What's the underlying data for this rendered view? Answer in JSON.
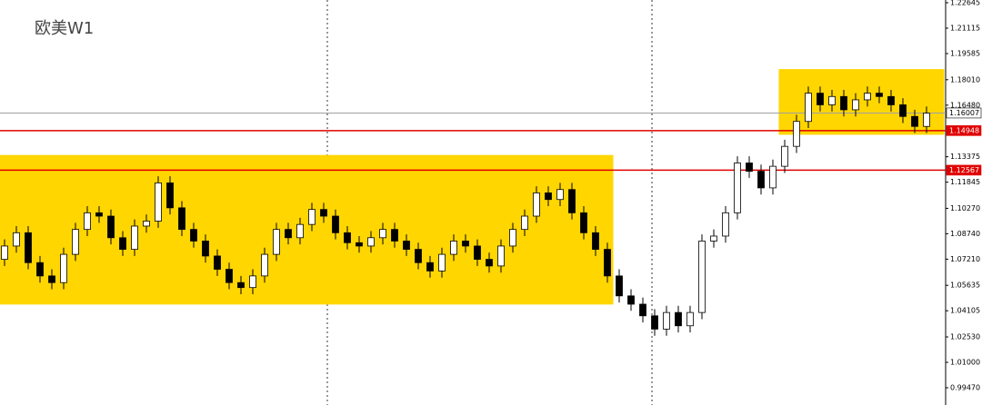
{
  "chart_data": {
    "type": "candlestick",
    "title": "欧美W1",
    "ylim": [
      0.98432,
      1.22809
    ],
    "yticks": [
      1.22645,
      1.21115,
      1.19585,
      {
        "value": 1.1801,
        "label": "1.18010"
      },
      {
        "value": 1.1648,
        "label": "1.16480"
      },
      1.13375,
      1.11845,
      {
        "value": 1.1027,
        "label": "1.10270"
      },
      {
        "value": 1.0874,
        "label": "1.08740"
      },
      {
        "value": 1.0721,
        "label": "1.07210"
      },
      1.05635,
      1.04105,
      {
        "value": 1.0253,
        "label": "1.02530"
      },
      {
        "value": 1.01,
        "label": "1.01000"
      },
      {
        "value": 0.9947,
        "label": "0.99470"
      }
    ],
    "bull_color": "#ffffff",
    "bear_color": "#000000",
    "open": [
      1.072,
      1.08,
      1.088,
      1.07,
      1.062,
      1.058,
      1.075,
      1.09,
      1.1,
      1.098,
      1.085,
      1.078,
      1.092,
      1.095,
      1.118,
      1.103,
      1.09,
      1.083,
      1.074,
      1.066,
      1.058,
      1.055,
      1.062,
      1.075,
      1.09,
      1.085,
      1.093,
      1.102,
      1.098,
      1.088,
      1.082,
      1.08,
      1.085,
      1.09,
      1.083,
      1.078,
      1.07,
      1.065,
      1.075,
      1.083,
      1.08,
      1.072,
      1.068,
      1.08,
      1.09,
      1.098,
      1.112,
      1.108,
      1.114,
      1.1,
      1.088,
      1.078,
      1.062,
      1.05,
      1.045,
      1.038,
      1.03,
      1.04,
      1.032,
      1.04,
      1.083,
      1.086,
      1.1,
      1.13,
      1.125,
      1.115,
      1.128,
      1.14,
      1.155,
      1.172,
      1.165,
      1.17,
      1.162,
      1.168,
      1.172,
      1.17,
      1.165,
      1.158,
      1.152
    ],
    "high": [
      1.084,
      1.092,
      1.092,
      1.074,
      1.066,
      1.079,
      1.094,
      1.104,
      1.104,
      1.102,
      1.089,
      1.096,
      1.099,
      1.122,
      1.122,
      1.107,
      1.094,
      1.087,
      1.078,
      1.07,
      1.062,
      1.066,
      1.079,
      1.094,
      1.094,
      1.097,
      1.106,
      1.106,
      1.102,
      1.092,
      1.086,
      1.089,
      1.094,
      1.094,
      1.087,
      1.082,
      1.074,
      1.079,
      1.087,
      1.087,
      1.084,
      1.076,
      1.084,
      1.094,
      1.102,
      1.116,
      1.116,
      1.118,
      1.118,
      1.104,
      1.092,
      1.082,
      1.066,
      1.054,
      1.049,
      1.042,
      1.044,
      1.044,
      1.044,
      1.087,
      1.09,
      1.104,
      1.134,
      1.134,
      1.129,
      1.132,
      1.144,
      1.159,
      1.176,
      1.176,
      1.174,
      1.174,
      1.172,
      1.176,
      1.176,
      1.174,
      1.169,
      1.162,
      1.164
    ],
    "low": [
      1.068,
      1.076,
      1.066,
      1.058,
      1.054,
      1.054,
      1.071,
      1.086,
      1.094,
      1.081,
      1.074,
      1.074,
      1.088,
      1.091,
      1.099,
      1.086,
      1.079,
      1.07,
      1.062,
      1.054,
      1.051,
      1.051,
      1.058,
      1.071,
      1.081,
      1.081,
      1.089,
      1.094,
      1.084,
      1.078,
      1.076,
      1.076,
      1.081,
      1.079,
      1.074,
      1.066,
      1.061,
      1.061,
      1.071,
      1.076,
      1.068,
      1.064,
      1.064,
      1.076,
      1.086,
      1.094,
      1.104,
      1.104,
      1.096,
      1.084,
      1.074,
      1.058,
      1.046,
      1.041,
      1.034,
      1.026,
      1.026,
      1.028,
      1.028,
      1.036,
      1.079,
      1.082,
      1.096,
      1.121,
      1.111,
      1.111,
      1.124,
      1.136,
      1.151,
      1.161,
      1.161,
      1.158,
      1.158,
      1.164,
      1.166,
      1.161,
      1.154,
      1.148,
      1.148
    ],
    "close": [
      1.08,
      1.088,
      1.07,
      1.062,
      1.058,
      1.075,
      1.09,
      1.1,
      1.098,
      1.085,
      1.078,
      1.092,
      1.095,
      1.118,
      1.103,
      1.09,
      1.083,
      1.074,
      1.066,
      1.058,
      1.055,
      1.062,
      1.075,
      1.09,
      1.085,
      1.093,
      1.102,
      1.098,
      1.088,
      1.082,
      1.08,
      1.085,
      1.09,
      1.083,
      1.078,
      1.07,
      1.065,
      1.075,
      1.083,
      1.08,
      1.072,
      1.068,
      1.08,
      1.09,
      1.098,
      1.112,
      1.108,
      1.114,
      1.1,
      1.088,
      1.078,
      1.062,
      1.05,
      1.045,
      1.038,
      1.03,
      1.04,
      1.032,
      1.04,
      1.083,
      1.086,
      1.1,
      1.13,
      1.125,
      1.115,
      1.128,
      1.14,
      1.155,
      1.172,
      1.165,
      1.17,
      1.162,
      1.168,
      1.172,
      1.17,
      1.165,
      1.158,
      1.152,
      1.16
    ],
    "zones": [
      {
        "from": 0,
        "to": 51,
        "top": 1.1348,
        "bottom": 1.0448,
        "color": "#ffd600"
      },
      {
        "from": 66,
        "to": 79,
        "top": 1.1865,
        "bottom": 1.147,
        "color": "#ffd600"
      }
    ],
    "levels": [
      {
        "value": 1.14948,
        "color": "#e00000"
      },
      {
        "value": 1.12567,
        "color": "#e00000"
      }
    ],
    "current_price": {
      "value": 1.16007,
      "color": "#a0a0a0"
    }
  }
}
